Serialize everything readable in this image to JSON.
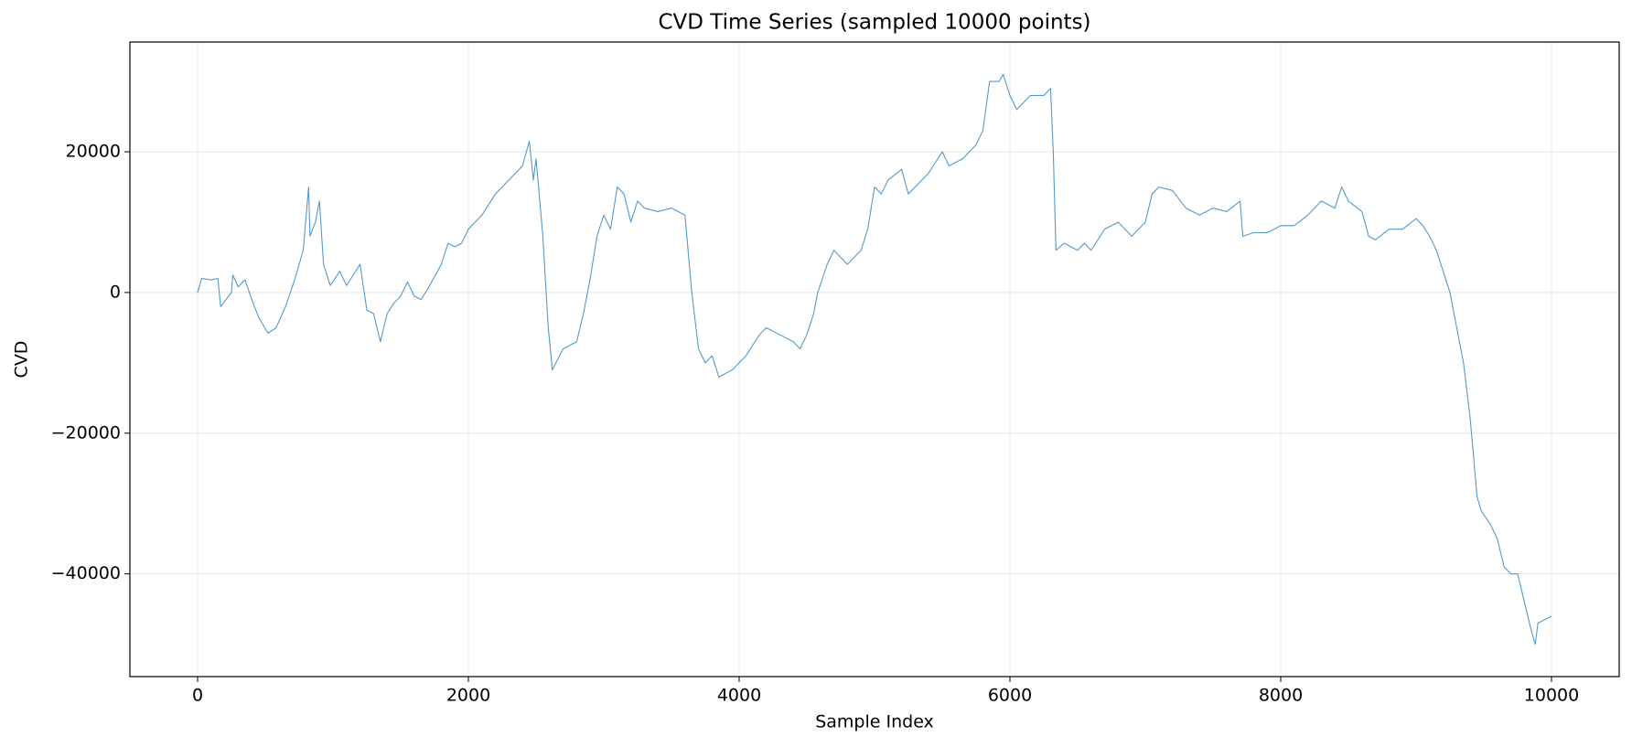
{
  "chart_data": {
    "type": "line",
    "title": "CVD Time Series (sampled 10000 points)",
    "xlabel": "Sample Index",
    "ylabel": "CVD",
    "color": "#1f77b4",
    "grid": true,
    "xlim": [
      -500,
      10500
    ],
    "xticks": [
      0,
      2000,
      4000,
      6000,
      8000,
      10000
    ],
    "ylim": [
      -54600,
      35600
    ],
    "yticks": [
      {
        "value": -40000,
        "label": "−40000"
      },
      {
        "value": -20000,
        "label": "−20000"
      },
      0,
      20000
    ],
    "x": [
      0,
      30,
      100,
      150,
      170,
      250,
      260,
      300,
      350,
      400,
      450,
      520,
      580,
      650,
      720,
      780,
      820,
      830,
      870,
      900,
      930,
      980,
      1050,
      1100,
      1150,
      1200,
      1250,
      1300,
      1350,
      1400,
      1450,
      1500,
      1550,
      1600,
      1650,
      1700,
      1800,
      1850,
      1900,
      1950,
      2000,
      2100,
      2200,
      2300,
      2400,
      2450,
      2480,
      2500,
      2550,
      2590,
      2620,
      2700,
      2800,
      2850,
      2900,
      2950,
      3000,
      3050,
      3100,
      3150,
      3200,
      3250,
      3300,
      3400,
      3500,
      3600,
      3650,
      3700,
      3750,
      3800,
      3850,
      3950,
      4050,
      4150,
      4200,
      4300,
      4400,
      4450,
      4500,
      4550,
      4580,
      4650,
      4700,
      4800,
      4900,
      4950,
      5000,
      5050,
      5100,
      5200,
      5250,
      5300,
      5400,
      5500,
      5550,
      5650,
      5750,
      5800,
      5850,
      5920,
      5950,
      6000,
      6050,
      6150,
      6250,
      6300,
      6320,
      6340,
      6400,
      6500,
      6550,
      6600,
      6700,
      6800,
      6900,
      7000,
      7050,
      7100,
      7200,
      7300,
      7400,
      7500,
      7600,
      7700,
      7720,
      7800,
      7900,
      8000,
      8100,
      8200,
      8300,
      8400,
      8450,
      8500,
      8600,
      8650,
      8700,
      8800,
      8900,
      9000,
      9050,
      9100,
      9150,
      9200,
      9250,
      9300,
      9350,
      9400,
      9450,
      9480,
      9550,
      9600,
      9650,
      9700,
      9750,
      9800,
      9850,
      9880,
      9900,
      10000
    ],
    "values": [
      0,
      2000,
      1800,
      2000,
      -2000,
      0,
      2500,
      800,
      1800,
      -1000,
      -3500,
      -5800,
      -5000,
      -2000,
      2000,
      6000,
      15000,
      8000,
      10000,
      13000,
      4000,
      1000,
      3000,
      1000,
      2500,
      4000,
      -2500,
      -3000,
      -7000,
      -3000,
      -1500,
      -500,
      1500,
      -500,
      -1000,
      500,
      4000,
      7000,
      6500,
      7000,
      9000,
      11000,
      14000,
      16000,
      18000,
      21500,
      16000,
      19000,
      8000,
      -5000,
      -11000,
      -8000,
      -7000,
      -3000,
      2000,
      8000,
      11000,
      9000,
      15000,
      14000,
      10000,
      13000,
      12000,
      11500,
      12000,
      11000,
      0,
      -8000,
      -10000,
      -9000,
      -12000,
      -11000,
      -9000,
      -6000,
      -5000,
      -6000,
      -7000,
      -8000,
      -6000,
      -3000,
      0,
      4000,
      6000,
      4000,
      6000,
      9000,
      15000,
      14000,
      16000,
      17500,
      14000,
      15000,
      17000,
      20000,
      18000,
      19000,
      21000,
      23000,
      30000,
      30000,
      31000,
      28000,
      26000,
      28000,
      28000,
      29000,
      20000,
      6000,
      7000,
      6000,
      7000,
      6000,
      9000,
      10000,
      8000,
      10000,
      14000,
      15000,
      14500,
      12000,
      11000,
      12000,
      11500,
      13000,
      8000,
      8500,
      8500,
      9500,
      9500,
      11000,
      13000,
      12000,
      15000,
      13000,
      11500,
      8000,
      7500,
      9000,
      9000,
      10500,
      9500,
      8000,
      6000,
      3000,
      0,
      -5000,
      -10000,
      -18000,
      -29000,
      -31000,
      -33000,
      -35000,
      -39000,
      -40000,
      -40000,
      -44000,
      -48000,
      -50000,
      -47000,
      -46000
    ]
  }
}
